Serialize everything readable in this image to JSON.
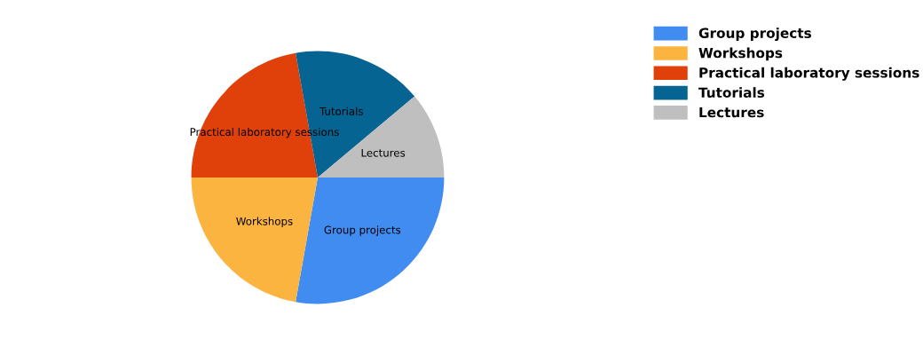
{
  "chart_data": {
    "type": "pie",
    "categories": [
      "Group projects",
      "Workshops",
      "Practical laboratory sessions",
      "Tutorials",
      "Lectures"
    ],
    "values": [
      27.8,
      22.2,
      22.2,
      16.7,
      11.1
    ],
    "colors": [
      "#418cf0",
      "#fcb441",
      "#e0400a",
      "#056492",
      "#bfbfbf"
    ],
    "legend": "top right"
  }
}
